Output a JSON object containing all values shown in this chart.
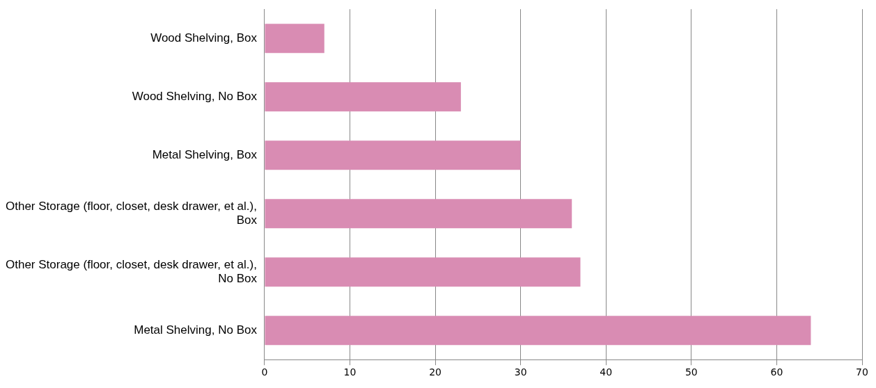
{
  "chart_data": {
    "type": "bar",
    "orientation": "horizontal",
    "categories": [
      "Wood Shelving, Box",
      "Wood Shelving, No Box",
      "Metal Shelving, Box",
      "Other Storage (floor, closet, desk drawer, et al.), Box",
      "Other Storage (floor, closet, desk drawer, et al.), No Box",
      "Metal Shelving, No Box"
    ],
    "values": [
      7,
      23,
      30,
      36,
      37,
      64
    ],
    "color": "#d98cb3",
    "xlim": [
      0,
      70
    ],
    "xticks": [
      0,
      10,
      20,
      30,
      40,
      50,
      60,
      70
    ],
    "grid": "x"
  }
}
